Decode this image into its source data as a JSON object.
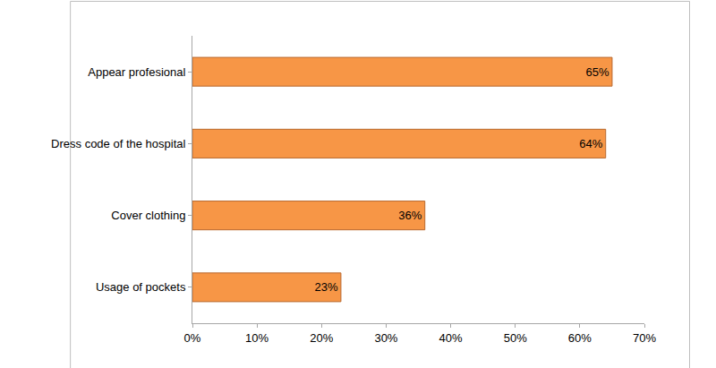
{
  "chart_data": {
    "type": "bar",
    "orientation": "horizontal",
    "categories": [
      "Appear profesional",
      "Dress code of the hospital",
      "Cover clothing",
      "Usage of pockets"
    ],
    "values": [
      65,
      64,
      36,
      23
    ],
    "value_labels": [
      "65%",
      "64%",
      "36%",
      "23%"
    ],
    "data_labels": true,
    "color": "#f79646",
    "xlim": [
      0,
      70
    ],
    "xticks": [
      {
        "value": 0,
        "label": "0%"
      },
      {
        "value": 10,
        "label": "10%"
      },
      {
        "value": 20,
        "label": "20%"
      },
      {
        "value": 30,
        "label": "30%"
      },
      {
        "value": 40,
        "label": "40%"
      },
      {
        "value": 50,
        "label": "50%"
      },
      {
        "value": 60,
        "label": "60%"
      },
      {
        "value": 70,
        "label": "70%"
      }
    ],
    "grid": false
  }
}
